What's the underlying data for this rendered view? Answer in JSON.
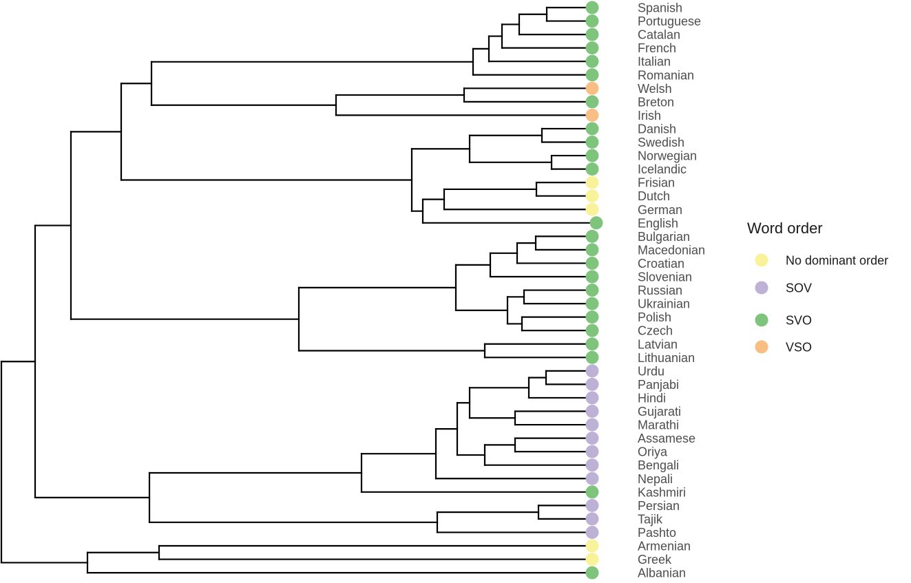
{
  "leaves": [
    {
      "name": "Spanish",
      "order": "SVO"
    },
    {
      "name": "Portuguese",
      "order": "SVO"
    },
    {
      "name": "Catalan",
      "order": "SVO"
    },
    {
      "name": "French",
      "order": "SVO"
    },
    {
      "name": "Italian",
      "order": "SVO"
    },
    {
      "name": "Romanian",
      "order": "SVO"
    },
    {
      "name": "Welsh",
      "order": "VSO"
    },
    {
      "name": "Breton",
      "order": "SVO"
    },
    {
      "name": "Irish",
      "order": "VSO"
    },
    {
      "name": "Danish",
      "order": "SVO"
    },
    {
      "name": "Swedish",
      "order": "SVO"
    },
    {
      "name": "Norwegian",
      "order": "SVO"
    },
    {
      "name": "Icelandic",
      "order": "SVO"
    },
    {
      "name": "Frisian",
      "order": "No dominant order"
    },
    {
      "name": "Dutch",
      "order": "No dominant order"
    },
    {
      "name": "German",
      "order": "No dominant order"
    },
    {
      "name": "English",
      "order": "SVO"
    },
    {
      "name": "Bulgarian",
      "order": "SVO"
    },
    {
      "name": "Macedonian",
      "order": "SVO"
    },
    {
      "name": "Croatian",
      "order": "SVO"
    },
    {
      "name": "Slovenian",
      "order": "SVO"
    },
    {
      "name": "Russian",
      "order": "SVO"
    },
    {
      "name": "Ukrainian",
      "order": "SVO"
    },
    {
      "name": "Polish",
      "order": "SVO"
    },
    {
      "name": "Czech",
      "order": "SVO"
    },
    {
      "name": "Latvian",
      "order": "SVO"
    },
    {
      "name": "Lithuanian",
      "order": "SVO"
    },
    {
      "name": "Urdu",
      "order": "SOV"
    },
    {
      "name": "Panjabi",
      "order": "SOV"
    },
    {
      "name": "Hindi",
      "order": "SOV"
    },
    {
      "name": "Gujarati",
      "order": "SOV"
    },
    {
      "name": "Marathi",
      "order": "SOV"
    },
    {
      "name": "Assamese",
      "order": "SOV"
    },
    {
      "name": "Oriya",
      "order": "SOV"
    },
    {
      "name": "Bengali",
      "order": "SOV"
    },
    {
      "name": "Nepali",
      "order": "SOV"
    },
    {
      "name": "Kashmiri",
      "order": "SVO"
    },
    {
      "name": "Persian",
      "order": "SOV"
    },
    {
      "name": "Tajik",
      "order": "SOV"
    },
    {
      "name": "Pashto",
      "order": "SOV"
    },
    {
      "name": "Armenian",
      "order": "No dominant order"
    },
    {
      "name": "Greek",
      "order": "No dominant order"
    },
    {
      "name": "Albanian",
      "order": "SVO"
    }
  ],
  "legend": {
    "title": "Word order",
    "items": [
      {
        "label": "No dominant order",
        "color": "#f8f39a"
      },
      {
        "label": "SOV",
        "color": "#beb1d6"
      },
      {
        "label": "SVO",
        "color": "#7fc47c"
      },
      {
        "label": "VSO",
        "color": "#f8be84"
      }
    ]
  }
}
